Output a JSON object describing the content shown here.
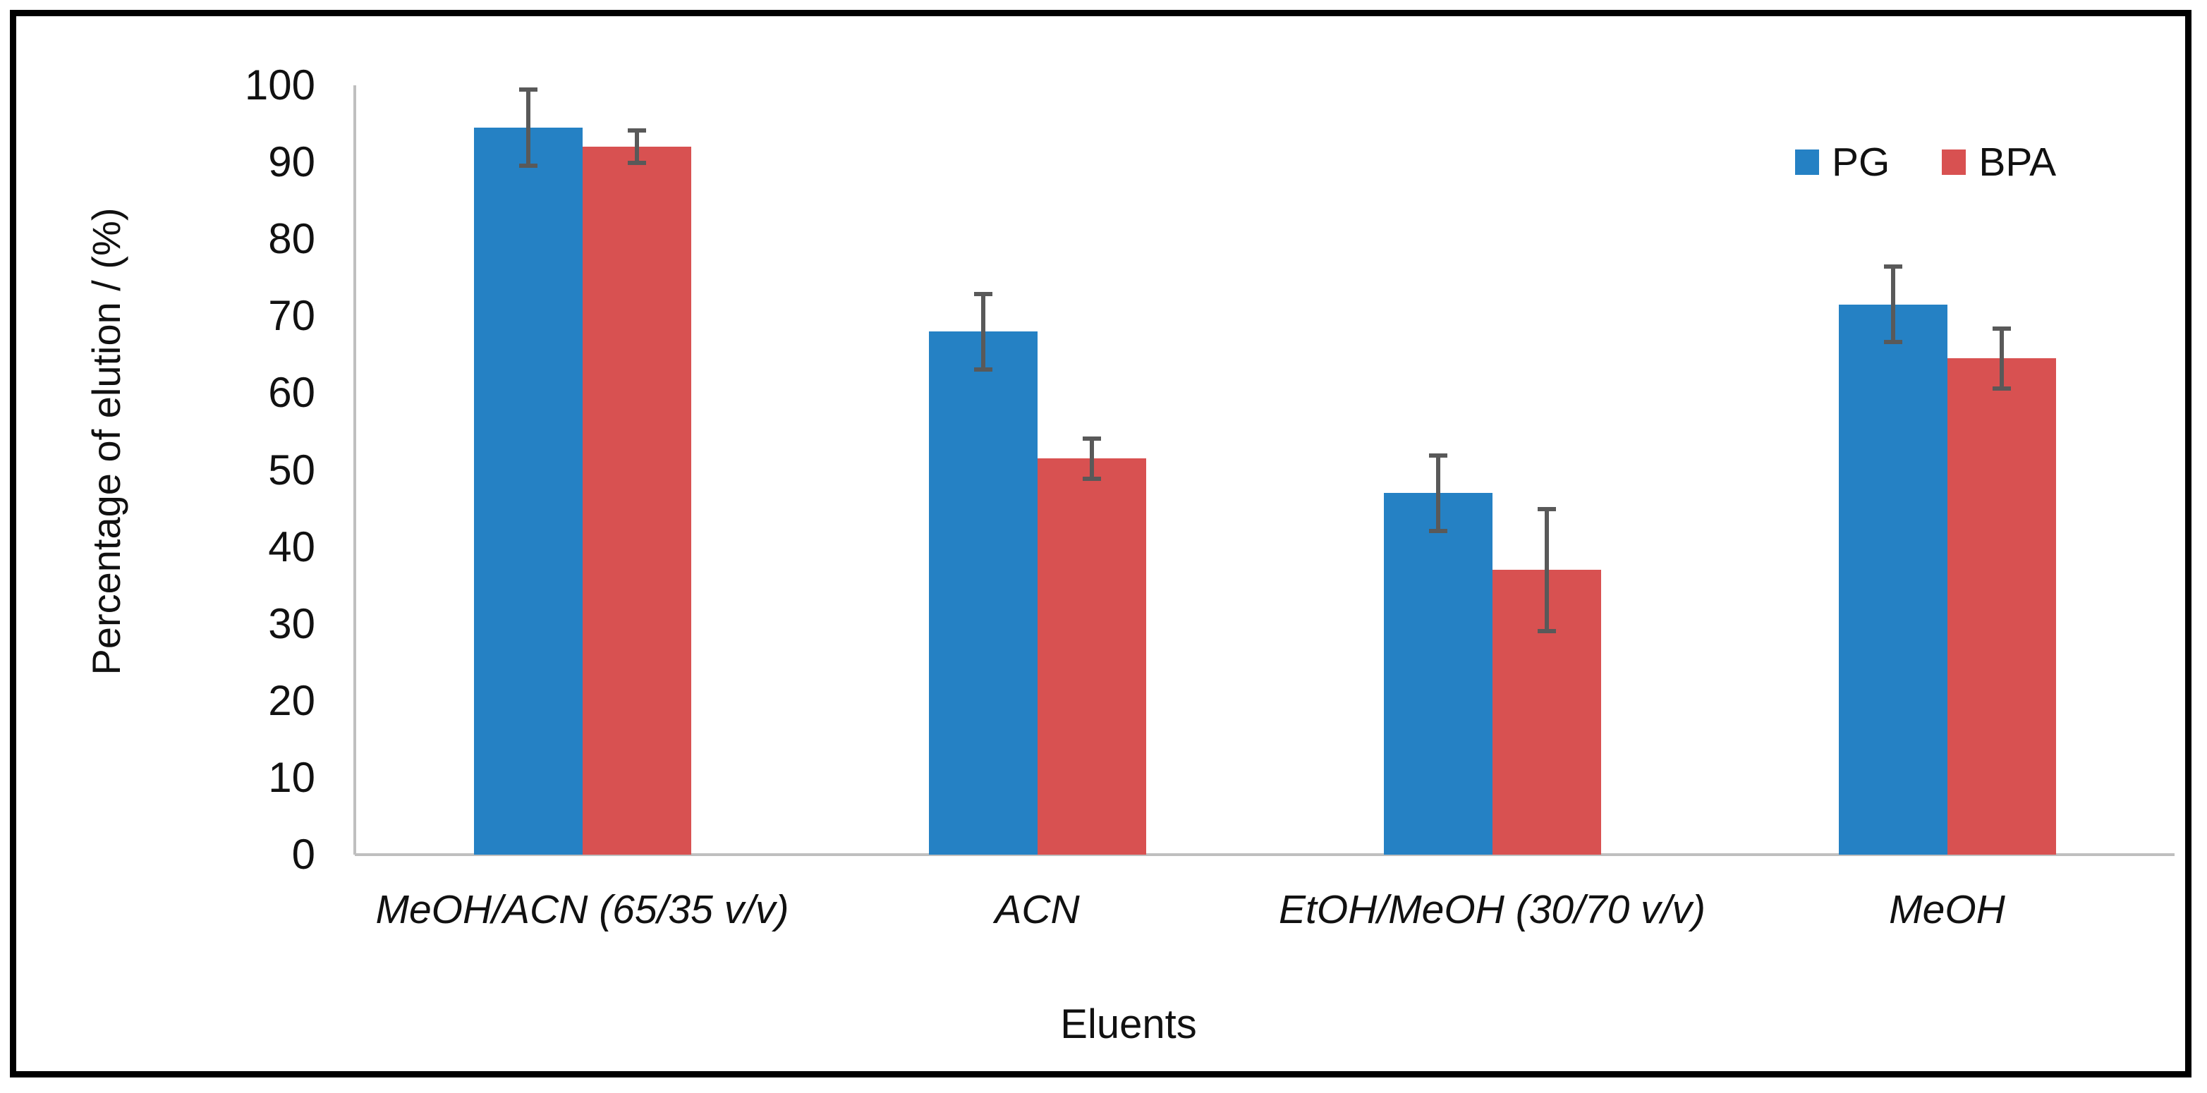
{
  "figure": {
    "background_color": "#ffffff",
    "frame_color": "#000000"
  },
  "chart_data": {
    "type": "bar",
    "title": "",
    "xlabel": "Eluents",
    "ylabel": "Percentage of elution / (%)",
    "categories": [
      "MeOH/ACN (65/35 v/v)",
      "ACN",
      "EtOH/MeOH (30/70 v/v)",
      "MeOH"
    ],
    "series": [
      {
        "name": "PG",
        "color": "#2581C4",
        "values": [
          94.5,
          68.0,
          47.0,
          71.5
        ],
        "errors": [
          5.0,
          5.0,
          5.0,
          5.0
        ]
      },
      {
        "name": "BPA",
        "color": "#D85151",
        "values": [
          92.0,
          51.5,
          37.0,
          64.5
        ],
        "errors": [
          2.2,
          2.7,
          8.0,
          4.0
        ]
      }
    ],
    "ylim": [
      0,
      100
    ],
    "ytick_step": 10,
    "ytick_labels": [
      "0",
      "10",
      "20",
      "30",
      "40",
      "50",
      "60",
      "70",
      "80",
      "90",
      "100"
    ],
    "grid": false,
    "legend_position": "top-right",
    "legend_entries": [
      "PG",
      "BPA"
    ],
    "axis_line_color": "#bfbfbf",
    "error_bar_color": "#595959",
    "category_label_style": "italic"
  }
}
